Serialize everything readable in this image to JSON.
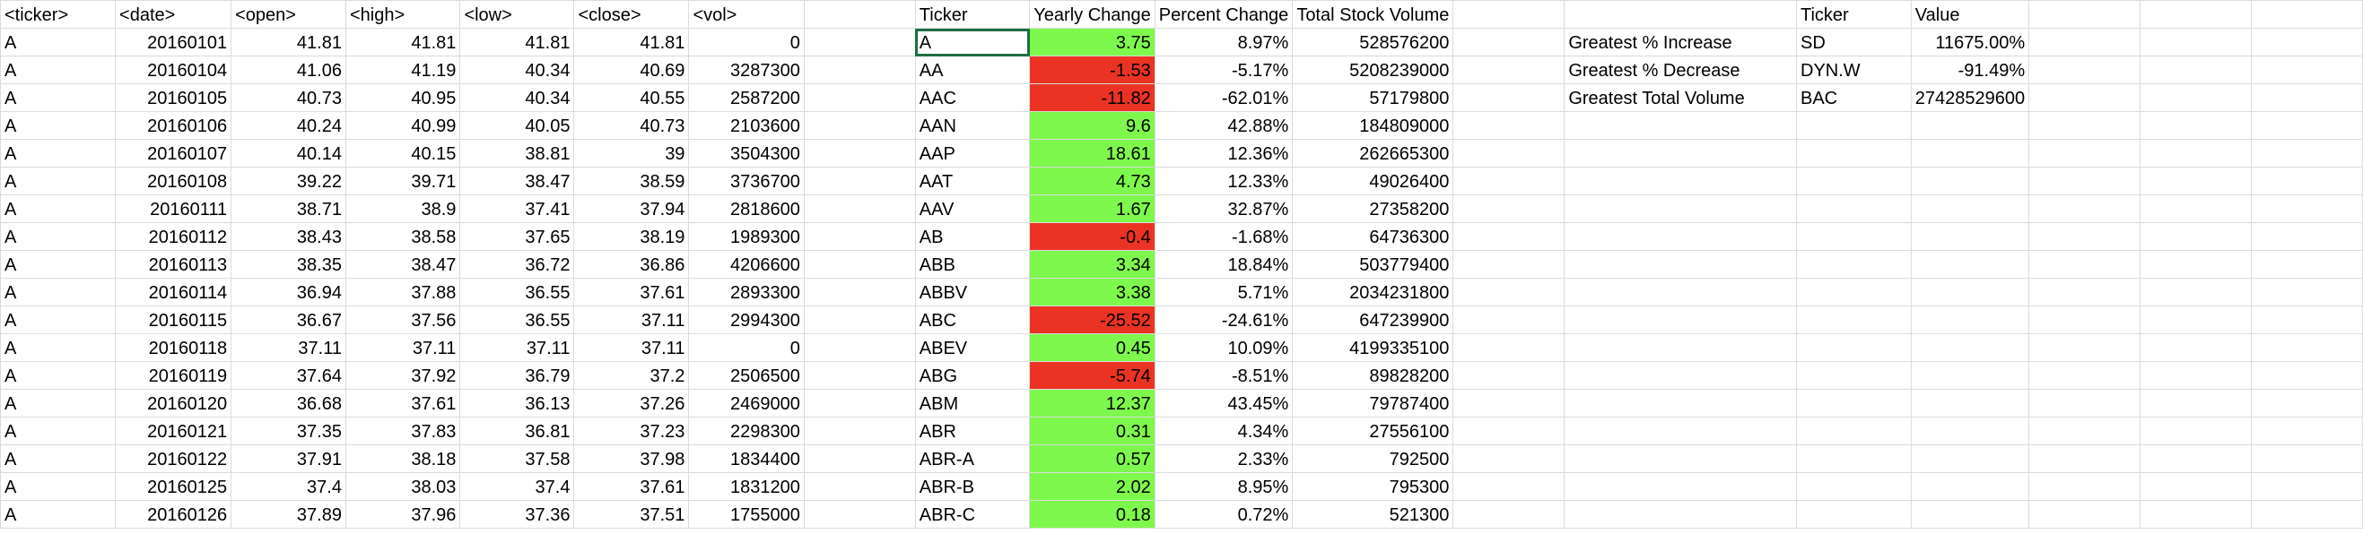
{
  "raw_headers": [
    "<ticker>",
    "<date>",
    "<open>",
    "<high>",
    "<low>",
    "<close>",
    "<vol>"
  ],
  "raw_rows": [
    [
      "A",
      "20160101",
      "41.81",
      "41.81",
      "41.81",
      "41.81",
      "0"
    ],
    [
      "A",
      "20160104",
      "41.06",
      "41.19",
      "40.34",
      "40.69",
      "3287300"
    ],
    [
      "A",
      "20160105",
      "40.73",
      "40.95",
      "40.34",
      "40.55",
      "2587200"
    ],
    [
      "A",
      "20160106",
      "40.24",
      "40.99",
      "40.05",
      "40.73",
      "2103600"
    ],
    [
      "A",
      "20160107",
      "40.14",
      "40.15",
      "38.81",
      "39",
      "3504300"
    ],
    [
      "A",
      "20160108",
      "39.22",
      "39.71",
      "38.47",
      "38.59",
      "3736700"
    ],
    [
      "A",
      "20160111",
      "38.71",
      "38.9",
      "37.41",
      "37.94",
      "2818600"
    ],
    [
      "A",
      "20160112",
      "38.43",
      "38.58",
      "37.65",
      "38.19",
      "1989300"
    ],
    [
      "A",
      "20160113",
      "38.35",
      "38.47",
      "36.72",
      "36.86",
      "4206600"
    ],
    [
      "A",
      "20160114",
      "36.94",
      "37.88",
      "36.55",
      "37.61",
      "2893300"
    ],
    [
      "A",
      "20160115",
      "36.67",
      "37.56",
      "36.55",
      "37.11",
      "2994300"
    ],
    [
      "A",
      "20160118",
      "37.11",
      "37.11",
      "37.11",
      "37.11",
      "0"
    ],
    [
      "A",
      "20160119",
      "37.64",
      "37.92",
      "36.79",
      "37.2",
      "2506500"
    ],
    [
      "A",
      "20160120",
      "36.68",
      "37.61",
      "36.13",
      "37.26",
      "2469000"
    ],
    [
      "A",
      "20160121",
      "37.35",
      "37.83",
      "36.81",
      "37.23",
      "2298300"
    ],
    [
      "A",
      "20160122",
      "37.91",
      "38.18",
      "37.58",
      "37.98",
      "1834400"
    ],
    [
      "A",
      "20160125",
      "37.4",
      "38.03",
      "37.4",
      "37.61",
      "1831200"
    ],
    [
      "A",
      "20160126",
      "37.89",
      "37.96",
      "37.36",
      "37.51",
      "1755000"
    ]
  ],
  "summary_headers": [
    "Ticker",
    "Yearly Change",
    "Percent Change",
    "Total Stock Volume"
  ],
  "summary_rows": [
    {
      "ticker": "A",
      "yearly_change": "3.75",
      "percent_change": "8.97%",
      "volume": "528576200",
      "status": "positive"
    },
    {
      "ticker": "AA",
      "yearly_change": "-1.53",
      "percent_change": "-5.17%",
      "volume": "5208239000",
      "status": "negative"
    },
    {
      "ticker": "AAC",
      "yearly_change": "-11.82",
      "percent_change": "-62.01%",
      "volume": "57179800",
      "status": "negative"
    },
    {
      "ticker": "AAN",
      "yearly_change": "9.6",
      "percent_change": "42.88%",
      "volume": "184809000",
      "status": "positive"
    },
    {
      "ticker": "AAP",
      "yearly_change": "18.61",
      "percent_change": "12.36%",
      "volume": "262665300",
      "status": "positive"
    },
    {
      "ticker": "AAT",
      "yearly_change": "4.73",
      "percent_change": "12.33%",
      "volume": "49026400",
      "status": "positive"
    },
    {
      "ticker": "AAV",
      "yearly_change": "1.67",
      "percent_change": "32.87%",
      "volume": "27358200",
      "status": "positive"
    },
    {
      "ticker": "AB",
      "yearly_change": "-0.4",
      "percent_change": "-1.68%",
      "volume": "64736300",
      "status": "negative"
    },
    {
      "ticker": "ABB",
      "yearly_change": "3.34",
      "percent_change": "18.84%",
      "volume": "503779400",
      "status": "positive"
    },
    {
      "ticker": "ABBV",
      "yearly_change": "3.38",
      "percent_change": "5.71%",
      "volume": "2034231800",
      "status": "positive"
    },
    {
      "ticker": "ABC",
      "yearly_change": "-25.52",
      "percent_change": "-24.61%",
      "volume": "647239900",
      "status": "negative"
    },
    {
      "ticker": "ABEV",
      "yearly_change": "0.45",
      "percent_change": "10.09%",
      "volume": "4199335100",
      "status": "positive"
    },
    {
      "ticker": "ABG",
      "yearly_change": "-5.74",
      "percent_change": "-8.51%",
      "volume": "89828200",
      "status": "negative"
    },
    {
      "ticker": "ABM",
      "yearly_change": "12.37",
      "percent_change": "43.45%",
      "volume": "79787400",
      "status": "positive"
    },
    {
      "ticker": "ABR",
      "yearly_change": "0.31",
      "percent_change": "4.34%",
      "volume": "27556100",
      "status": "positive"
    },
    {
      "ticker": "ABR-A",
      "yearly_change": "0.57",
      "percent_change": "2.33%",
      "volume": "792500",
      "status": "positive"
    },
    {
      "ticker": "ABR-B",
      "yearly_change": "2.02",
      "percent_change": "8.95%",
      "volume": "795300",
      "status": "positive"
    },
    {
      "ticker": "ABR-C",
      "yearly_change": "0.18",
      "percent_change": "0.72%",
      "volume": "521300",
      "status": "positive"
    }
  ],
  "greatest_headers": [
    "Ticker",
    "Value"
  ],
  "greatest_rows": [
    {
      "label": "Greatest % Increase",
      "ticker": "SD",
      "value": "11675.00%"
    },
    {
      "label": "Greatest % Decrease",
      "ticker": "DYN.W",
      "value": "-91.49%"
    },
    {
      "label": "Greatest Total Volume",
      "ticker": "BAC",
      "value": "27428529600"
    }
  ],
  "colors": {
    "positive": "#7ef84c",
    "negative": "#ea3323",
    "selection": "#1e6e42"
  }
}
